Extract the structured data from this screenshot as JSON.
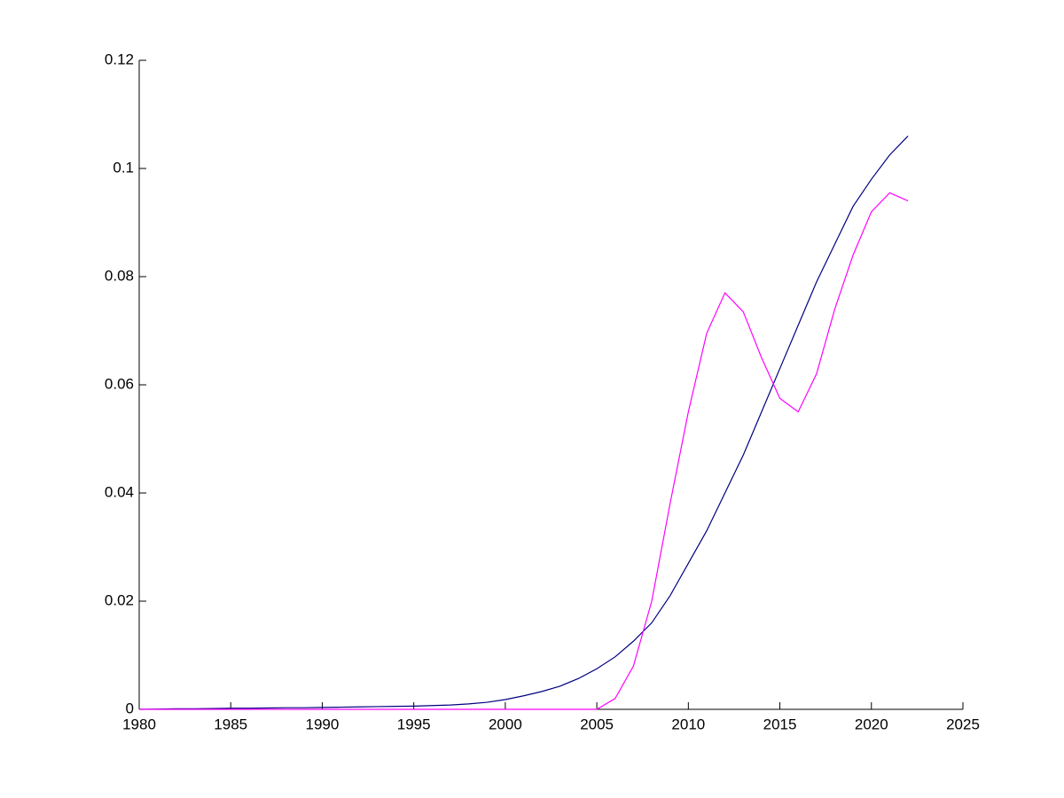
{
  "chart_data": {
    "type": "line",
    "x": [
      1980,
      1981,
      1982,
      1983,
      1984,
      1985,
      1986,
      1987,
      1988,
      1989,
      1990,
      1991,
      1992,
      1993,
      1994,
      1995,
      1996,
      1997,
      1998,
      1999,
      2000,
      2001,
      2002,
      2003,
      2004,
      2005,
      2006,
      2007,
      2008,
      2009,
      2010,
      2011,
      2012,
      2013,
      2014,
      2015,
      2016,
      2017,
      2018,
      2019,
      2020,
      2021,
      2022
    ],
    "series": [
      {
        "color": "#000080",
        "values": [
          0,
          5e-05,
          0.0001,
          0.0001,
          0.00015,
          0.0002,
          0.0002,
          0.00025,
          0.0003,
          0.0003,
          0.00035,
          0.0004,
          0.00045,
          0.0005,
          0.00055,
          0.0006,
          0.0007,
          0.0008,
          0.001,
          0.0013,
          0.0018,
          0.0025,
          0.0033,
          0.0043,
          0.0057,
          0.0075,
          0.0097,
          0.0126,
          0.016,
          0.021,
          0.027,
          0.033,
          0.04,
          0.047,
          0.055,
          0.063,
          0.071,
          0.079,
          0.086,
          0.093,
          0.098,
          0.1025,
          0.106
        ]
      },
      {
        "color": "#ff00ff",
        "values": [
          0,
          0,
          0,
          0,
          0,
          0,
          0,
          0,
          0,
          0,
          0,
          0,
          0,
          0,
          0,
          0,
          0,
          0,
          0,
          0,
          0,
          0,
          0,
          0,
          0,
          0,
          0.002,
          0.008,
          0.02,
          0.038,
          0.055,
          0.0695,
          0.077,
          0.0735,
          0.065,
          0.0575,
          0.055,
          0.062,
          0.074,
          0.084,
          0.092,
          0.0955,
          0.094
        ]
      }
    ],
    "xlim": [
      1980,
      2025
    ],
    "xticks": [
      1980,
      1985,
      1990,
      1995,
      2000,
      2005,
      2010,
      2015,
      2020,
      2025
    ],
    "ylim": [
      0,
      0.12
    ],
    "yticks": [
      0,
      0.02,
      0.04,
      0.06,
      0.08,
      0.1,
      0.12
    ]
  }
}
